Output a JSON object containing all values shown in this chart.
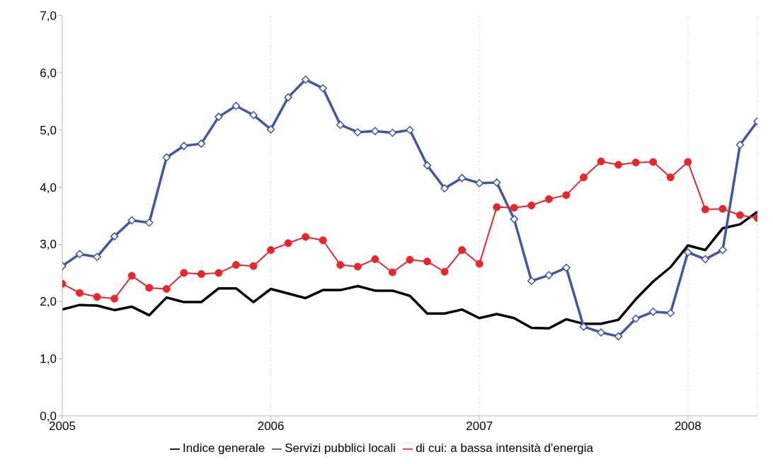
{
  "chart_data": {
    "type": "line",
    "x": [
      "2005-01",
      "2005-02",
      "2005-03",
      "2005-04",
      "2005-05",
      "2005-06",
      "2005-07",
      "2005-08",
      "2005-09",
      "2005-10",
      "2005-11",
      "2005-12",
      "2006-01",
      "2006-02",
      "2006-03",
      "2006-04",
      "2006-05",
      "2006-06",
      "2006-07",
      "2006-08",
      "2006-09",
      "2006-10",
      "2006-11",
      "2006-12",
      "2007-01",
      "2007-02",
      "2007-03",
      "2007-04",
      "2007-05",
      "2007-06",
      "2007-07",
      "2007-08",
      "2007-09",
      "2007-10",
      "2007-11",
      "2007-12",
      "2008-01",
      "2008-02",
      "2008-03",
      "2008-04",
      "2008-05"
    ],
    "series": [
      {
        "name": "Indice generale",
        "color": "#000000",
        "marker": "none",
        "values": [
          1.86,
          1.94,
          1.93,
          1.85,
          1.91,
          1.76,
          2.07,
          1.99,
          1.99,
          2.23,
          2.23,
          1.99,
          2.22,
          2.14,
          2.06,
          2.2,
          2.2,
          2.27,
          2.19,
          2.19,
          2.1,
          1.79,
          1.79,
          1.86,
          1.71,
          1.78,
          1.71,
          1.54,
          1.53,
          1.69,
          1.61,
          1.61,
          1.68,
          2.04,
          2.35,
          2.6,
          2.98,
          2.9,
          3.28,
          3.35,
          3.57
        ]
      },
      {
        "name": "Servizi pubblici locali",
        "color": "#3f57a5",
        "marker": "diamond",
        "values": [
          2.62,
          2.83,
          2.78,
          3.14,
          3.42,
          3.38,
          4.52,
          4.72,
          4.76,
          5.23,
          5.42,
          5.26,
          5.01,
          5.57,
          5.88,
          5.73,
          5.09,
          4.96,
          4.98,
          4.95,
          5.0,
          4.38,
          3.98,
          4.16,
          4.07,
          4.08,
          3.44,
          2.36,
          2.46,
          2.59,
          1.56,
          1.46,
          1.39,
          1.7,
          1.82,
          1.8,
          2.86,
          2.74,
          2.9,
          4.74,
          5.15
        ]
      },
      {
        "name": "di cui: a bassa intensità d'energia",
        "color": "#e8262b",
        "marker": "circle",
        "values": [
          2.31,
          2.15,
          2.08,
          2.05,
          2.45,
          2.24,
          2.22,
          2.5,
          2.48,
          2.5,
          2.64,
          2.62,
          2.9,
          3.02,
          3.13,
          3.07,
          2.64,
          2.61,
          2.74,
          2.51,
          2.73,
          2.7,
          2.52,
          2.9,
          2.66,
          3.65,
          3.64,
          3.68,
          3.79,
          3.86,
          4.17,
          4.45,
          4.39,
          4.43,
          4.44,
          4.17,
          4.44,
          3.61,
          3.62,
          3.51,
          3.46
        ]
      }
    ],
    "xlim": [
      "2005-01",
      "2008-05"
    ],
    "xticks": [
      "2005",
      "2006",
      "2007",
      "2008"
    ],
    "ylim": [
      0,
      7
    ],
    "yticks": [
      {
        "value": 0,
        "label": "0,0"
      },
      {
        "value": 1,
        "label": "1,0"
      },
      {
        "value": 2,
        "label": "2,0"
      },
      {
        "value": 3,
        "label": "3,0"
      },
      {
        "value": 4,
        "label": "4,0"
      },
      {
        "value": 5,
        "label": "5,0"
      },
      {
        "value": 6,
        "label": "6,0"
      },
      {
        "value": 7,
        "label": "7,0"
      }
    ],
    "grid": "x",
    "legend": "bottom"
  }
}
